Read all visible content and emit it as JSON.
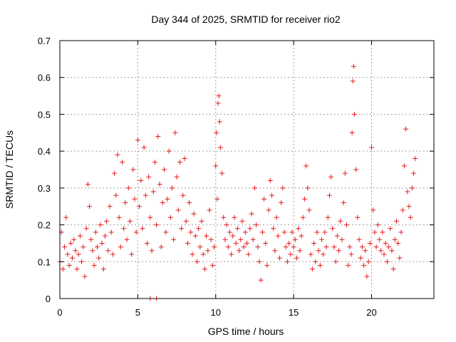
{
  "chart_data": {
    "type": "scatter",
    "title": "Day 344 of 2025, SRMTID for receiver rio2",
    "xlabel": "GPS time / hours",
    "ylabel": "SRMTID / TECUs",
    "xlim": [
      0,
      24
    ],
    "ylim": [
      0,
      0.7
    ],
    "xticks": [
      0,
      5,
      10,
      15,
      20
    ],
    "xtick_labels": [
      "0",
      "5",
      "10",
      "15",
      "20"
    ],
    "yticks": [
      0,
      0.1,
      0.2,
      0.3,
      0.4,
      0.5,
      0.6,
      0.7
    ],
    "ytick_labels": [
      "0",
      "0.1",
      "0.2",
      "0.3",
      "0.4",
      "0.5",
      "0.6",
      "0.7"
    ],
    "grid": true,
    "marker": "plus",
    "series": [
      {
        "name": "SRMTID",
        "color": "#e41a1c",
        "points": [
          [
            0.0,
            0.1
          ],
          [
            0.1,
            0.18
          ],
          [
            0.2,
            0.08
          ],
          [
            0.3,
            0.14
          ],
          [
            0.4,
            0.22
          ],
          [
            0.5,
            0.12
          ],
          [
            0.6,
            0.09
          ],
          [
            0.7,
            0.15
          ],
          [
            0.8,
            0.11
          ],
          [
            0.9,
            0.16
          ],
          [
            1.0,
            0.13
          ],
          [
            1.1,
            0.08
          ],
          [
            1.2,
            0.12
          ],
          [
            1.3,
            0.17
          ],
          [
            1.4,
            0.1
          ],
          [
            1.5,
            0.14
          ],
          [
            1.6,
            0.06
          ],
          [
            1.7,
            0.19
          ],
          [
            1.8,
            0.31
          ],
          [
            1.9,
            0.25
          ],
          [
            2.0,
            0.16
          ],
          [
            2.1,
            0.13
          ],
          [
            2.2,
            0.09
          ],
          [
            2.3,
            0.18
          ],
          [
            2.4,
            0.14
          ],
          [
            2.5,
            0.11
          ],
          [
            2.6,
            0.2
          ],
          [
            2.7,
            0.15
          ],
          [
            2.8,
            0.08
          ],
          [
            2.9,
            0.17
          ],
          [
            3.0,
            0.21
          ],
          [
            3.1,
            0.13
          ],
          [
            3.2,
            0.25
          ],
          [
            3.3,
            0.18
          ],
          [
            3.4,
            0.12
          ],
          [
            3.5,
            0.34
          ],
          [
            3.6,
            0.28
          ],
          [
            3.7,
            0.39
          ],
          [
            3.8,
            0.22
          ],
          [
            3.9,
            0.14
          ],
          [
            4.0,
            0.37
          ],
          [
            4.1,
            0.19
          ],
          [
            4.2,
            0.26
          ],
          [
            4.3,
            0.16
          ],
          [
            4.4,
            0.3
          ],
          [
            4.5,
            0.21
          ],
          [
            4.6,
            0.12
          ],
          [
            4.7,
            0.35
          ],
          [
            4.8,
            0.27
          ],
          [
            4.9,
            0.18
          ],
          [
            5.0,
            0.43
          ],
          [
            5.1,
            0.25
          ],
          [
            5.2,
            0.32
          ],
          [
            5.3,
            0.19
          ],
          [
            5.4,
            0.41
          ],
          [
            5.5,
            0.28
          ],
          [
            5.6,
            0.15
          ],
          [
            5.7,
            0.33
          ],
          [
            5.8,
            0.22
          ],
          [
            5.9,
            0.13
          ],
          [
            6.0,
            0.29
          ],
          [
            6.1,
            0.37
          ],
          [
            6.2,
            0.2
          ],
          [
            6.3,
            0.44
          ],
          [
            6.4,
            0.31
          ],
          [
            6.5,
            0.14
          ],
          [
            6.6,
            0.26
          ],
          [
            6.7,
            0.35
          ],
          [
            6.8,
            0.18
          ],
          [
            6.9,
            0.27
          ],
          [
            7.0,
            0.4
          ],
          [
            7.1,
            0.22
          ],
          [
            7.2,
            0.3
          ],
          [
            7.3,
            0.16
          ],
          [
            7.4,
            0.45
          ],
          [
            7.5,
            0.33
          ],
          [
            7.6,
            0.24
          ],
          [
            7.7,
            0.37
          ],
          [
            7.8,
            0.19
          ],
          [
            7.9,
            0.28
          ],
          [
            8.0,
            0.38
          ],
          [
            8.1,
            0.21
          ],
          [
            8.2,
            0.15
          ],
          [
            8.3,
            0.26
          ],
          [
            8.4,
            0.18
          ],
          [
            8.5,
            0.12
          ],
          [
            8.6,
            0.23
          ],
          [
            8.7,
            0.17
          ],
          [
            8.8,
            0.1
          ],
          [
            8.9,
            0.19
          ],
          [
            9.0,
            0.14
          ],
          [
            9.1,
            0.21
          ],
          [
            9.2,
            0.12
          ],
          [
            9.3,
            0.08
          ],
          [
            9.4,
            0.17
          ],
          [
            9.5,
            0.13
          ],
          [
            9.6,
            0.24
          ],
          [
            9.7,
            0.16
          ],
          [
            9.8,
            0.09
          ],
          [
            9.9,
            0.14
          ],
          [
            10.0,
            0.36
          ],
          [
            10.05,
            0.45
          ],
          [
            10.1,
            0.27
          ],
          [
            10.15,
            0.53
          ],
          [
            10.2,
            0.55
          ],
          [
            10.25,
            0.48
          ],
          [
            10.3,
            0.41
          ],
          [
            10.4,
            0.34
          ],
          [
            10.5,
            0.22
          ],
          [
            10.6,
            0.16
          ],
          [
            10.7,
            0.2
          ],
          [
            10.8,
            0.14
          ],
          [
            10.9,
            0.18
          ],
          [
            11.0,
            0.12
          ],
          [
            11.1,
            0.17
          ],
          [
            11.2,
            0.22
          ],
          [
            11.3,
            0.15
          ],
          [
            11.4,
            0.19
          ],
          [
            11.5,
            0.13
          ],
          [
            11.6,
            0.16
          ],
          [
            11.7,
            0.21
          ],
          [
            11.8,
            0.14
          ],
          [
            11.9,
            0.18
          ],
          [
            12.0,
            0.15
          ],
          [
            12.1,
            0.12
          ],
          [
            12.2,
            0.19
          ],
          [
            12.3,
            0.23
          ],
          [
            12.4,
            0.16
          ],
          [
            12.5,
            0.3
          ],
          [
            12.6,
            0.2
          ],
          [
            12.7,
            0.14
          ],
          [
            12.8,
            0.1
          ],
          [
            12.9,
            0.05
          ],
          [
            13.0,
            0.18
          ],
          [
            13.1,
            0.27
          ],
          [
            13.2,
            0.15
          ],
          [
            13.3,
            0.09
          ],
          [
            13.4,
            0.24
          ],
          [
            13.5,
            0.32
          ],
          [
            13.6,
            0.28
          ],
          [
            13.7,
            0.19
          ],
          [
            13.8,
            0.13
          ],
          [
            13.9,
            0.22
          ],
          [
            14.0,
            0.17
          ],
          [
            14.1,
            0.11
          ],
          [
            14.2,
            0.26
          ],
          [
            14.3,
            0.3
          ],
          [
            14.4,
            0.18
          ],
          [
            14.5,
            0.14
          ],
          [
            14.6,
            0.1
          ],
          [
            14.7,
            0.15
          ],
          [
            14.8,
            0.12
          ],
          [
            14.9,
            0.18
          ],
          [
            15.0,
            0.14
          ],
          [
            15.1,
            0.16
          ],
          [
            15.2,
            0.11
          ],
          [
            15.3,
            0.19
          ],
          [
            15.4,
            0.13
          ],
          [
            15.5,
            0.17
          ],
          [
            15.6,
            0.22
          ],
          [
            15.7,
            0.27
          ],
          [
            15.8,
            0.36
          ],
          [
            15.9,
            0.3
          ],
          [
            16.0,
            0.24
          ],
          [
            16.1,
            0.12
          ],
          [
            16.2,
            0.08
          ],
          [
            16.3,
            0.15
          ],
          [
            16.4,
            0.1
          ],
          [
            16.5,
            0.18
          ],
          [
            16.6,
            0.13
          ],
          [
            16.7,
            0.09
          ],
          [
            16.8,
            0.16
          ],
          [
            16.9,
            0.12
          ],
          [
            17.0,
            0.18
          ],
          [
            17.1,
            0.14
          ],
          [
            17.2,
            0.22
          ],
          [
            17.3,
            0.28
          ],
          [
            17.4,
            0.33
          ],
          [
            17.5,
            0.19
          ],
          [
            17.6,
            0.14
          ],
          [
            17.7,
            0.1
          ],
          [
            17.8,
            0.17
          ],
          [
            17.9,
            0.13
          ],
          [
            18.0,
            0.21
          ],
          [
            18.1,
            0.16
          ],
          [
            18.2,
            0.26
          ],
          [
            18.3,
            0.34
          ],
          [
            18.4,
            0.2
          ],
          [
            18.5,
            0.09
          ],
          [
            18.6,
            0.14
          ],
          [
            18.7,
            0.12
          ],
          [
            18.75,
            0.45
          ],
          [
            18.8,
            0.59
          ],
          [
            18.85,
            0.63
          ],
          [
            18.9,
            0.5
          ],
          [
            19.0,
            0.35
          ],
          [
            19.1,
            0.22
          ],
          [
            19.2,
            0.16
          ],
          [
            19.3,
            0.11
          ],
          [
            19.4,
            0.14
          ],
          [
            19.5,
            0.09
          ],
          [
            19.6,
            0.13
          ],
          [
            19.7,
            0.06
          ],
          [
            19.8,
            0.1
          ],
          [
            19.9,
            0.15
          ],
          [
            20.0,
            0.41
          ],
          [
            20.1,
            0.24
          ],
          [
            20.2,
            0.18
          ],
          [
            20.3,
            0.14
          ],
          [
            20.4,
            0.2
          ],
          [
            20.5,
            0.16
          ],
          [
            20.6,
            0.13
          ],
          [
            20.7,
            0.18
          ],
          [
            20.8,
            0.12
          ],
          [
            20.9,
            0.15
          ],
          [
            21.0,
            0.1
          ],
          [
            21.1,
            0.14
          ],
          [
            21.2,
            0.19
          ],
          [
            21.3,
            0.13
          ],
          [
            21.4,
            0.08
          ],
          [
            21.5,
            0.16
          ],
          [
            21.6,
            0.21
          ],
          [
            21.7,
            0.15
          ],
          [
            21.8,
            0.11
          ],
          [
            21.9,
            0.18
          ],
          [
            22.0,
            0.24
          ],
          [
            22.1,
            0.36
          ],
          [
            22.2,
            0.46
          ],
          [
            22.3,
            0.29
          ],
          [
            22.4,
            0.25
          ],
          [
            22.5,
            0.22
          ],
          [
            22.6,
            0.3
          ],
          [
            22.7,
            0.34
          ],
          [
            22.8,
            0.38
          ],
          [
            5.8,
            0.0
          ],
          [
            6.2,
            0.0
          ]
        ]
      }
    ]
  }
}
